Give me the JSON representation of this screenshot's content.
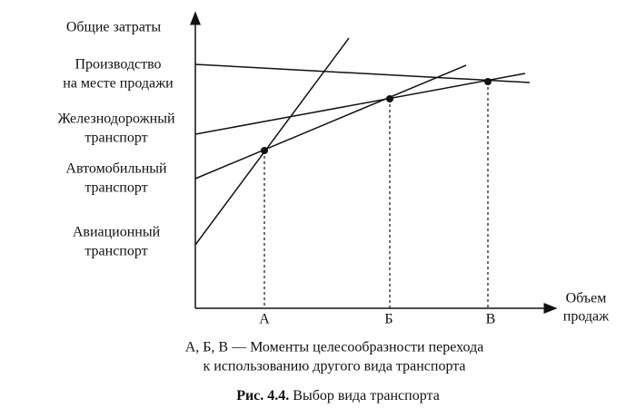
{
  "axes": {
    "y_label": "Общие затраты",
    "x_label": [
      "Объем",
      "продаж"
    ]
  },
  "lines": [
    {
      "label": [
        "Производство",
        "на месте продажи"
      ]
    },
    {
      "label": [
        "Железнодорожный",
        "транспорт"
      ]
    },
    {
      "label": [
        "Автомобильный",
        "транспорт"
      ]
    },
    {
      "label": [
        "Авиационный",
        "транспорт"
      ]
    }
  ],
  "points": [
    "А",
    "Б",
    "В"
  ],
  "caption": [
    "А, Б, В — Моменты целесообразности перехода",
    "к использованию  другого вида транспорта"
  ],
  "figure": {
    "number": "Рис. 4.4.",
    "title": "Выбор вида транспорта"
  }
}
